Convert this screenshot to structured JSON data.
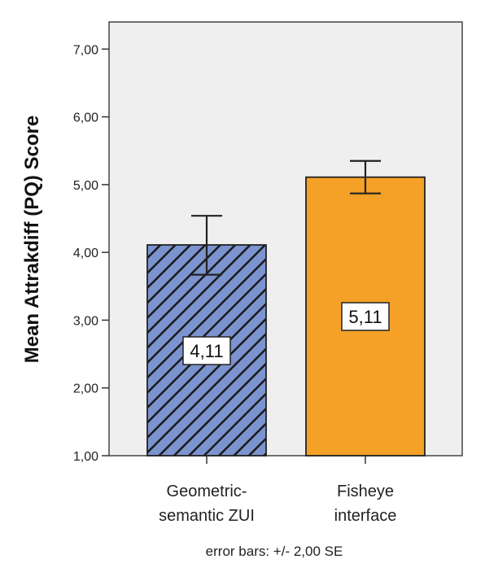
{
  "chart_data": {
    "type": "bar",
    "ylabel": "Mean Attrakdiff (PQ) Score",
    "ylim": [
      1.0,
      7.4
    ],
    "yticks": [
      "1,00",
      "2,00",
      "3,00",
      "4,00",
      "5,00",
      "6,00",
      "7,00"
    ],
    "ytick_values": [
      1,
      2,
      3,
      4,
      5,
      6,
      7
    ],
    "categories": [
      {
        "line1": "Geometric-",
        "line2": "semantic ZUI"
      },
      {
        "line1": "Fisheye",
        "line2": "interface"
      }
    ],
    "values": [
      4.11,
      5.11
    ],
    "data_labels": [
      "4,11",
      "5,11"
    ],
    "error_low": [
      3.67,
      4.87
    ],
    "error_high": [
      4.54,
      5.35
    ],
    "bar_styles": [
      {
        "fill": "#7b93cf",
        "pattern": "diagonal-hatch",
        "hatch_color": "#1a1a1a"
      },
      {
        "fill": "#f5a127",
        "pattern": "solid"
      }
    ],
    "plot_background": "#efefef",
    "grid": false,
    "note": "error bars: +/- 2,00 SE"
  }
}
